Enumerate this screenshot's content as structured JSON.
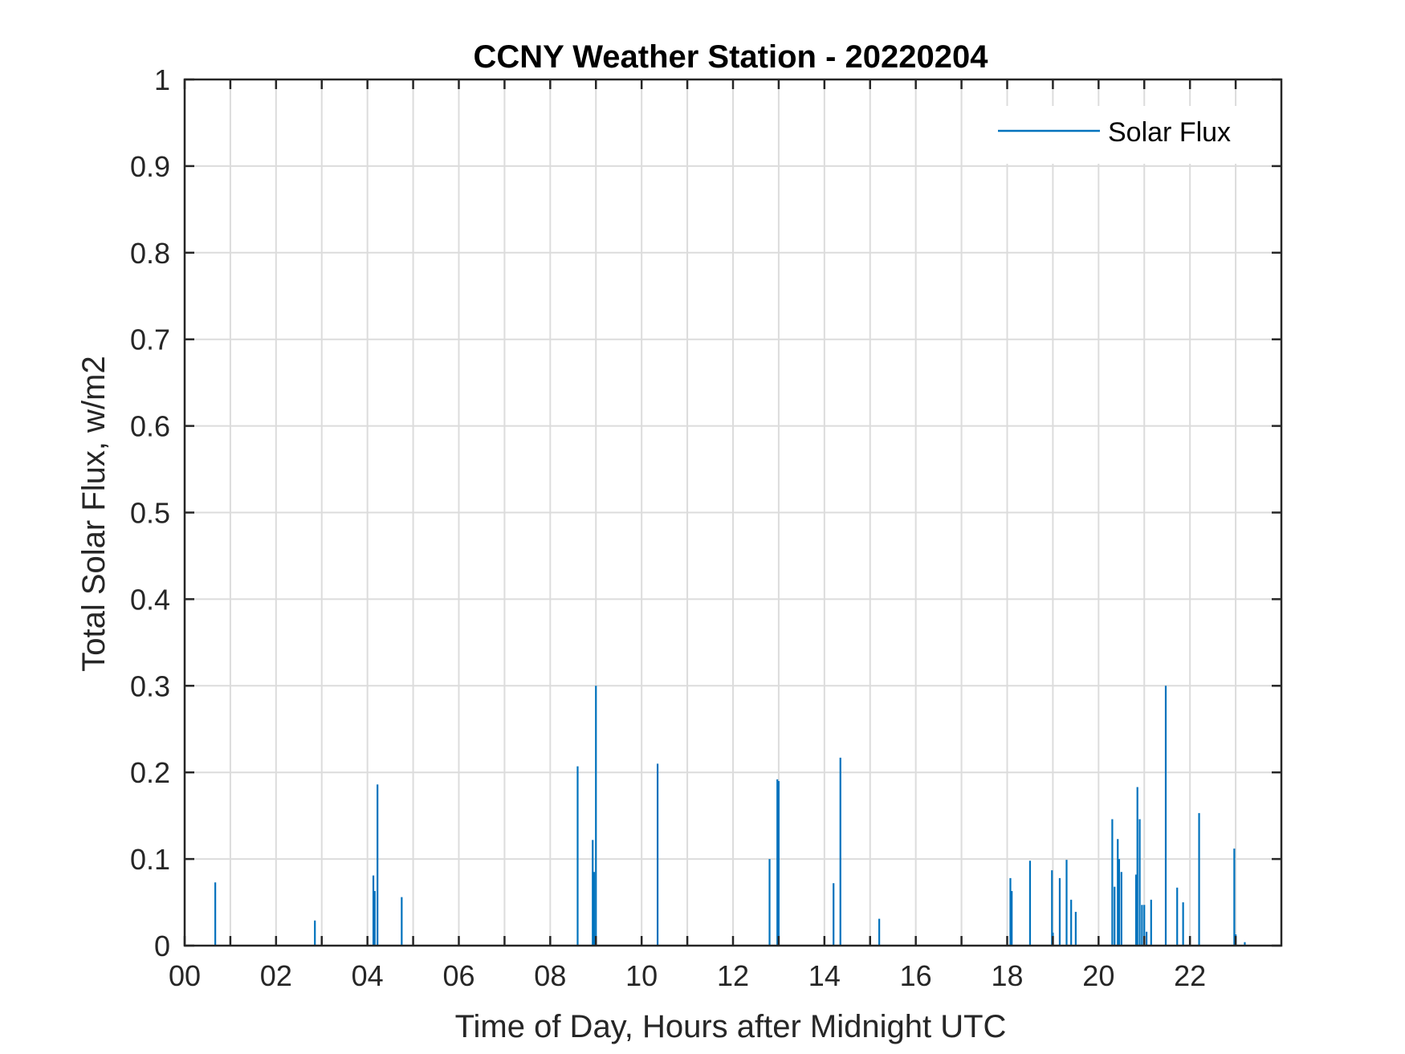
{
  "chart_data": {
    "type": "bar",
    "title": "CCNY Weather Station - 20220204",
    "xlabel": "Time of Day, Hours after Midnight UTC",
    "ylabel": "Total Solar Flux, w/m2",
    "xlim": [
      0,
      24
    ],
    "ylim": [
      0,
      1
    ],
    "xticks": [
      0,
      2,
      4,
      6,
      8,
      10,
      12,
      14,
      16,
      18,
      20,
      22
    ],
    "xtick_labels": [
      "00",
      "02",
      "04",
      "06",
      "08",
      "10",
      "12",
      "14",
      "16",
      "18",
      "20",
      "22"
    ],
    "yticks": [
      0,
      0.1,
      0.2,
      0.3,
      0.4,
      0.5,
      0.6,
      0.7,
      0.8,
      0.9,
      1
    ],
    "ytick_labels": [
      "0",
      "0.1",
      "0.2",
      "0.3",
      "0.4",
      "0.5",
      "0.6",
      "0.7",
      "0.8",
      "0.9",
      "1"
    ],
    "grid": true,
    "legend": {
      "position": "top-right",
      "entries": [
        "Solar Flux"
      ]
    },
    "series": [
      {
        "name": "Solar Flux",
        "color": "#0072bd",
        "x": [
          0.67,
          2.85,
          4.13,
          4.16,
          4.22,
          4.75,
          8.6,
          8.93,
          8.96,
          9.0,
          10.35,
          12.8,
          12.97,
          13.0,
          14.2,
          14.35,
          15.2,
          18.07,
          18.1,
          18.5,
          18.98,
          19.0,
          19.15,
          19.3,
          19.4,
          19.5,
          20.3,
          20.35,
          20.42,
          20.45,
          20.5,
          20.82,
          20.85,
          20.9,
          20.95,
          21.0,
          21.05,
          21.15,
          21.47,
          21.72,
          21.85,
          22.2,
          22.97,
          23.0,
          23.2
        ],
        "values": [
          0.073,
          0.029,
          0.081,
          0.063,
          0.186,
          0.056,
          0.207,
          0.122,
          0.085,
          0.3,
          0.21,
          0.1,
          0.192,
          0.19,
          0.072,
          0.217,
          0.031,
          0.078,
          0.063,
          0.098,
          0.087,
          0.015,
          0.078,
          0.099,
          0.053,
          0.039,
          0.146,
          0.068,
          0.123,
          0.1,
          0.085,
          0.082,
          0.183,
          0.146,
          0.047,
          0.047,
          0.016,
          0.053,
          0.3,
          0.067,
          0.05,
          0.153,
          0.112,
          0.013,
          0.004
        ]
      }
    ]
  }
}
